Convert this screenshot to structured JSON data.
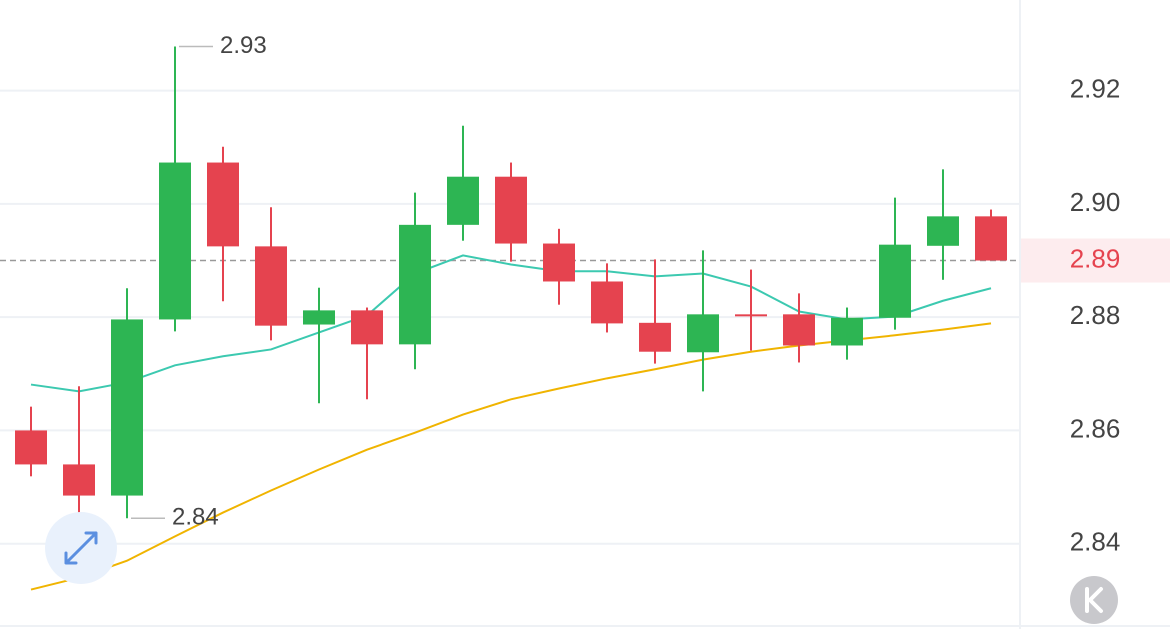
{
  "chart_data": {
    "type": "candlestick",
    "open": [
      2.86,
      2.854,
      2.8485,
      2.8796,
      2.9073,
      2.8925,
      2.8787,
      2.8812,
      2.8752,
      2.8963,
      2.9048,
      2.893,
      2.8863,
      2.879,
      2.8738,
      2.8805,
      2.8805,
      2.875,
      2.8799,
      2.8926,
      2.8978
    ],
    "high": [
      2.8642,
      2.8678,
      2.8851,
      2.9278,
      2.9101,
      2.8994,
      2.8852,
      2.8817,
      2.902,
      2.9138,
      2.9073,
      2.8956,
      2.8895,
      2.8902,
      2.8918,
      2.8884,
      2.8842,
      2.8817,
      2.9011,
      2.9061,
      2.899
    ],
    "low": [
      2.8519,
      2.8453,
      2.8445,
      2.8775,
      2.8828,
      2.8759,
      2.8648,
      2.8655,
      2.8708,
      2.8935,
      2.8898,
      2.8822,
      2.8773,
      2.8718,
      2.8669,
      2.8741,
      2.872,
      2.8725,
      2.8778,
      2.8866,
      2.89
    ],
    "close": [
      2.854,
      2.8485,
      2.8796,
      2.9073,
      2.8925,
      2.8785,
      2.8812,
      2.8752,
      2.8963,
      2.9048,
      2.893,
      2.8863,
      2.8789,
      2.8739,
      2.8805,
      2.8802,
      2.875,
      2.8799,
      2.8928,
      2.8978,
      2.89
    ],
    "up_color": "#2db553",
    "down_color": "#e5434f",
    "lines": [
      {
        "color": "#3cc9b0",
        "values": [
          2.8681,
          2.8669,
          2.8685,
          2.8715,
          2.8731,
          2.8743,
          2.8773,
          2.8803,
          2.8877,
          2.8909,
          2.8893,
          2.8881,
          2.8881,
          2.8872,
          2.8877,
          2.8854,
          2.881,
          2.8796,
          2.8801,
          2.8829,
          2.8851
        ]
      },
      {
        "color": "#f0b400",
        "values": [
          2.8319,
          2.834,
          2.837,
          2.8413,
          2.8455,
          2.8494,
          2.8531,
          2.8566,
          2.8596,
          2.8628,
          2.8655,
          2.8674,
          2.8692,
          2.8708,
          2.8725,
          2.8739,
          2.875,
          2.8759,
          2.8768,
          2.8778,
          2.8789
        ]
      }
    ],
    "high_label": "2.93",
    "low_label": "2.84",
    "last_price": 2.89,
    "ylim": [
      2.826,
      2.936
    ],
    "yticks": [
      2.84,
      2.86,
      2.88,
      {
        "value": 2.9,
        "label": "2.90"
      },
      2.92
    ],
    "grid": true
  }
}
